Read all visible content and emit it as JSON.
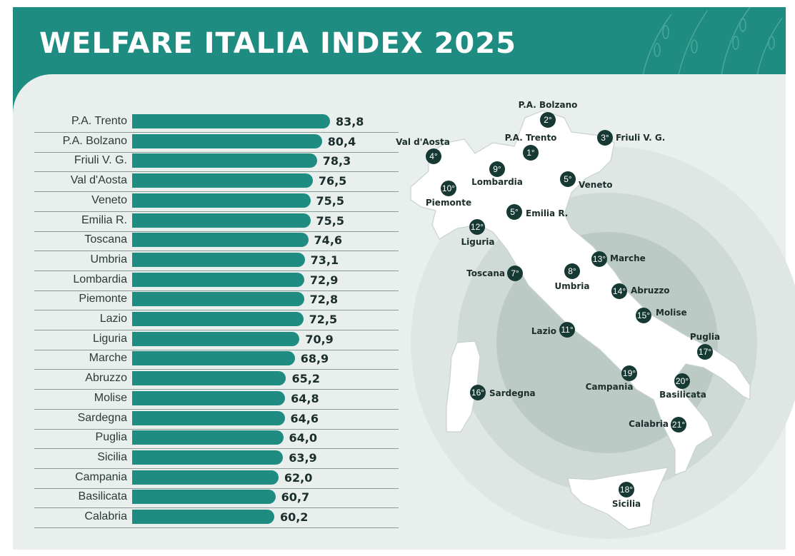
{
  "header": {
    "title": "WELFARE ITALIA INDEX 2025"
  },
  "chart_data": {
    "type": "bar",
    "orientation": "horizontal",
    "title": "WELFARE ITALIA INDEX 2025",
    "categories": [
      "P.A. Trento",
      "P.A. Bolzano",
      "Friuli V. G.",
      "Val d'Aosta",
      "Veneto",
      "Emilia R.",
      "Toscana",
      "Umbria",
      "Lombardia",
      "Piemonte",
      "Lazio",
      "Liguria",
      "Marche",
      "Abruzzo",
      "Molise",
      "Sardegna",
      "Puglia",
      "Sicilia",
      "Campania",
      "Basilicata",
      "Calabria"
    ],
    "values": [
      83.8,
      80.4,
      78.3,
      76.5,
      75.5,
      75.5,
      74.6,
      73.1,
      72.9,
      72.8,
      72.5,
      70.9,
      68.9,
      65.2,
      64.8,
      64.6,
      64.0,
      63.9,
      62.0,
      60.7,
      60.2
    ],
    "value_labels": [
      "83,8",
      "80,4",
      "78,3",
      "76,5",
      "75,5",
      "75,5",
      "74,6",
      "73,1",
      "72,9",
      "72,8",
      "72,5",
      "70,9",
      "68,9",
      "65,2",
      "64,8",
      "64,6",
      "64,0",
      "63,9",
      "62,0",
      "60,7",
      "60,2"
    ],
    "bar_color": "#1e8c80"
  },
  "map": {
    "markers": [
      {
        "rank": "2°",
        "name": "P.A. Bolzano"
      },
      {
        "rank": "1°",
        "name": "P.A. Trento"
      },
      {
        "rank": "3°",
        "name": "Friuli V. G."
      },
      {
        "rank": "4°",
        "name": "Val d'Aosta"
      },
      {
        "rank": "9°",
        "name": "Lombardia"
      },
      {
        "rank": "5°",
        "name": "Veneto"
      },
      {
        "rank": "10°",
        "name": "Piemonte"
      },
      {
        "rank": "5°",
        "name": "Emilia R."
      },
      {
        "rank": "12°",
        "name": "Liguria"
      },
      {
        "rank": "7°",
        "name": "Toscana"
      },
      {
        "rank": "8°",
        "name": "Umbria"
      },
      {
        "rank": "13°",
        "name": "Marche"
      },
      {
        "rank": "14°",
        "name": "Abruzzo"
      },
      {
        "rank": "15°",
        "name": "Molise"
      },
      {
        "rank": "11°",
        "name": "Lazio"
      },
      {
        "rank": "17°",
        "name": "Puglia"
      },
      {
        "rank": "19°",
        "name": "Campania"
      },
      {
        "rank": "20°",
        "name": "Basilicata"
      },
      {
        "rank": "16°",
        "name": "Sardegna"
      },
      {
        "rank": "21°",
        "name": "Calabria"
      },
      {
        "rank": "18°",
        "name": "Sicilia"
      }
    ]
  }
}
